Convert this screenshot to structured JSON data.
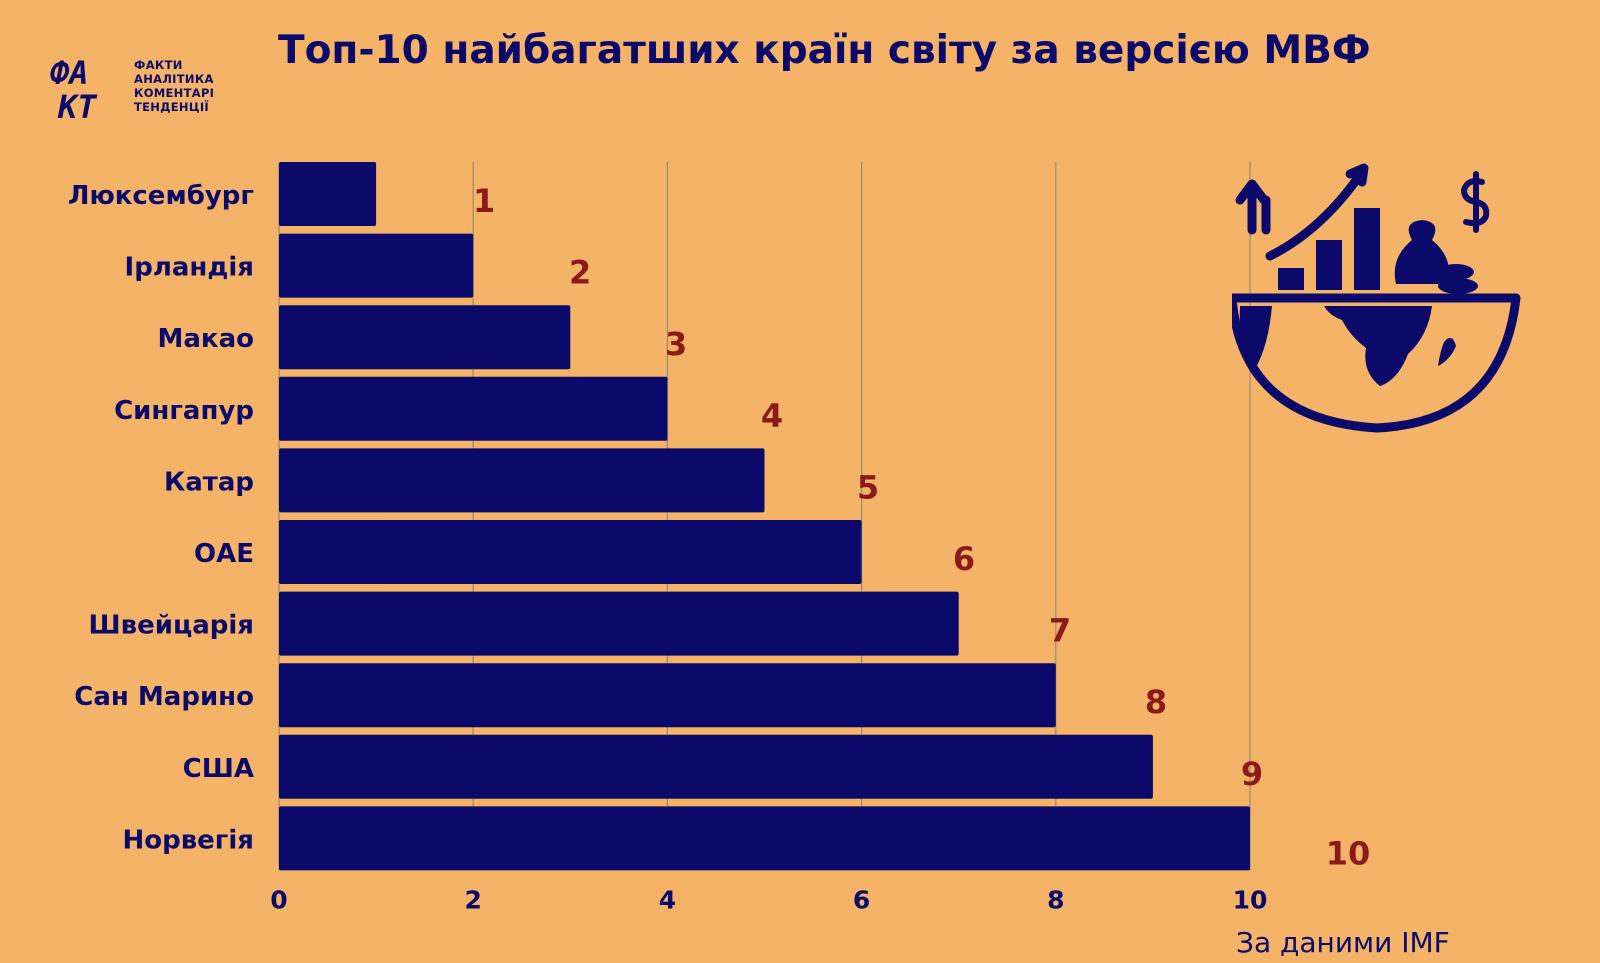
{
  "logo": {
    "mark_top": "ФА",
    "mark_bottom": "КТ",
    "lines": [
      "ФАКТИ",
      "АНАЛІТИКА",
      "КОМЕНТАРІ",
      "ТЕНДЕНЦІЇ"
    ]
  },
  "title": "Топ-10 найбагатших країн світу за версією МВФ",
  "source": "За даними IMF",
  "icon": "globe-money-growth-icon",
  "colors": {
    "background": "#F4B366",
    "bar": "#0B0A6B",
    "value_label": "#8B1A1A",
    "grid": "#9A8A78"
  },
  "chart_data": {
    "type": "bar",
    "orientation": "horizontal",
    "categories": [
      "Люксембург",
      "Ірландія",
      "Макао",
      "Сингапур",
      "Катар",
      "ОАЕ",
      "Швейцарія",
      "Сан Марино",
      "США",
      "Норвегія"
    ],
    "values": [
      1,
      2,
      3,
      4,
      5,
      6,
      7,
      8,
      9,
      10
    ],
    "data_labels": [
      "1",
      "2",
      "3",
      "4",
      "5",
      "6",
      "7",
      "8",
      "9",
      "10"
    ],
    "xticks": [
      "0",
      "2",
      "4",
      "6",
      "8",
      "10"
    ],
    "xlim": [
      0,
      10
    ],
    "grid": true,
    "legend": "none"
  }
}
